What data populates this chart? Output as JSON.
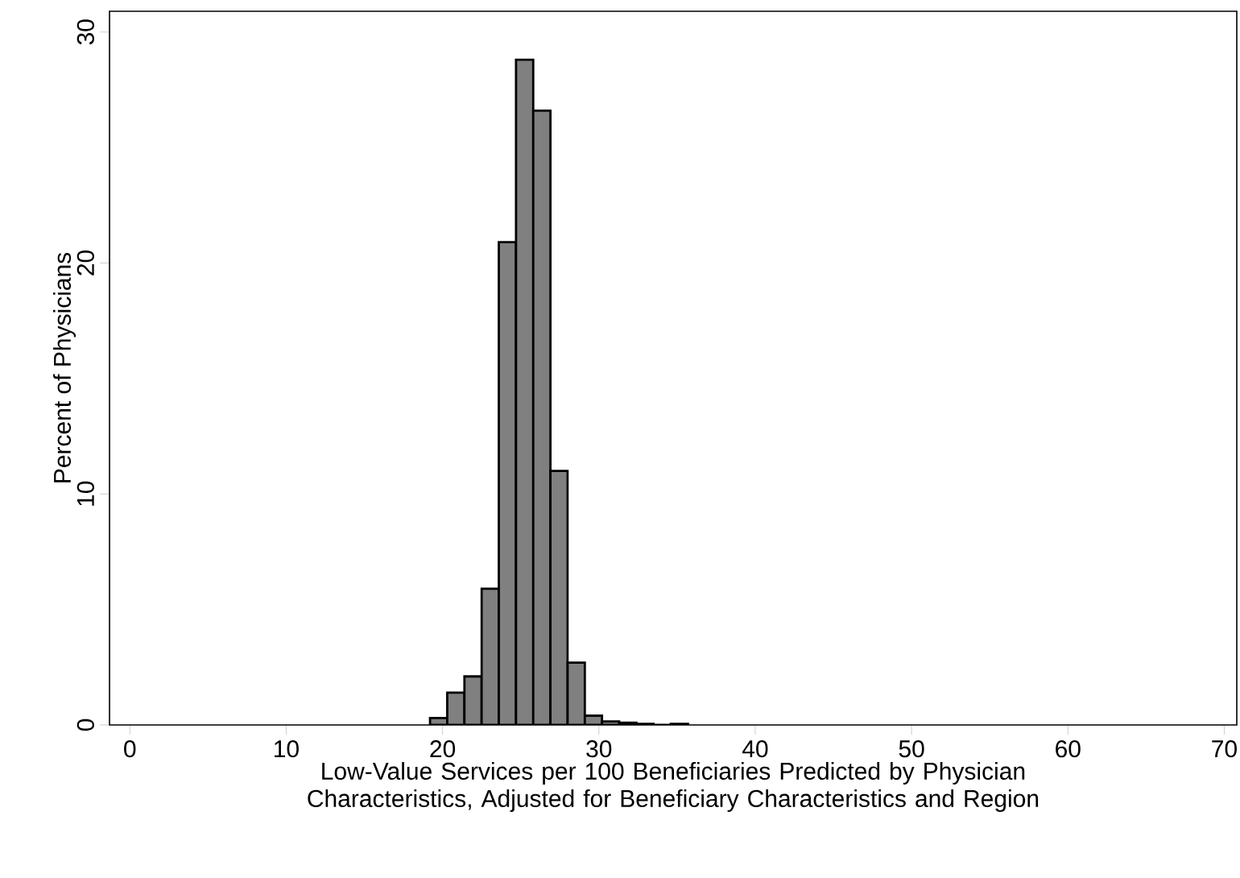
{
  "chart_data": {
    "type": "histogram",
    "xlabel": "Low-Value Services per 100 Beneficiaries Predicted by Physician Characteristics, Adjusted for Beneficiary Characteristics and Region",
    "ylabel": "Percent of Physicians",
    "bins": [
      19.2,
      20.3,
      21.4,
      22.5,
      23.6,
      24.7,
      25.8,
      26.9,
      28.0,
      29.1,
      30.2,
      31.3,
      32.4,
      33.5,
      34.6,
      35.7
    ],
    "values": [
      0.3,
      1.4,
      2.1,
      5.9,
      20.9,
      28.8,
      26.6,
      11.0,
      2.7,
      0.4,
      0.15,
      0.1,
      0.05,
      0,
      0.05
    ],
    "color": "#808080",
    "xlim": [
      -1.3,
      70.8
    ],
    "ylim": [
      0,
      30.9
    ],
    "xticks": [
      0,
      10,
      20,
      30,
      40,
      50,
      60,
      70
    ],
    "yticks": [
      0,
      10,
      20,
      30
    ],
    "grid": false
  }
}
